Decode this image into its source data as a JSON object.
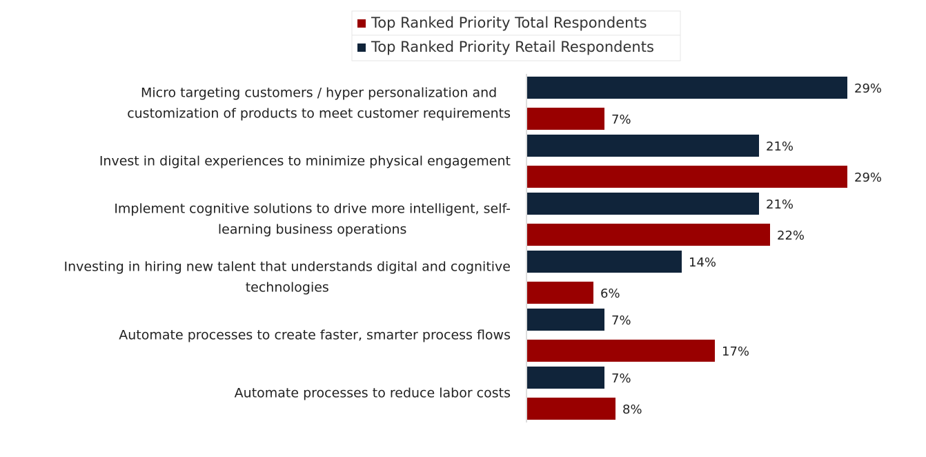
{
  "chart_data": {
    "type": "hbar",
    "categories": [
      [
        "Micro targeting customers / hyper personalization and",
        "customization of products to meet customer requirements"
      ],
      [
        "Invest in digital experiences to minimize physical engagement"
      ],
      [
        "Implement cognitive solutions to drive more intelligent, self-",
        "learning business operations"
      ],
      [
        "Investing in hiring new talent that understands digital and cognitive",
        "technologies"
      ],
      [
        "Automate processes to create faster, smarter process flows"
      ],
      [
        "Automate processes to reduce labor costs"
      ]
    ],
    "series": [
      {
        "name": "Top Ranked Priority Total Respondents",
        "color": "#990000",
        "values": [
          7,
          29,
          22,
          6,
          17,
          8
        ],
        "value_labels": [
          "7%",
          "29%",
          "22%",
          "6%",
          "17%",
          "8%"
        ]
      },
      {
        "name": "Top Ranked Priority Retail Respondents",
        "color": "#10243a",
        "values": [
          29,
          21,
          21,
          14,
          7,
          7
        ],
        "value_labels": [
          "29%",
          "21%",
          "21%",
          "14%",
          "7%",
          "7%"
        ]
      }
    ],
    "xlim": [
      0,
      35
    ],
    "legend": "top"
  }
}
